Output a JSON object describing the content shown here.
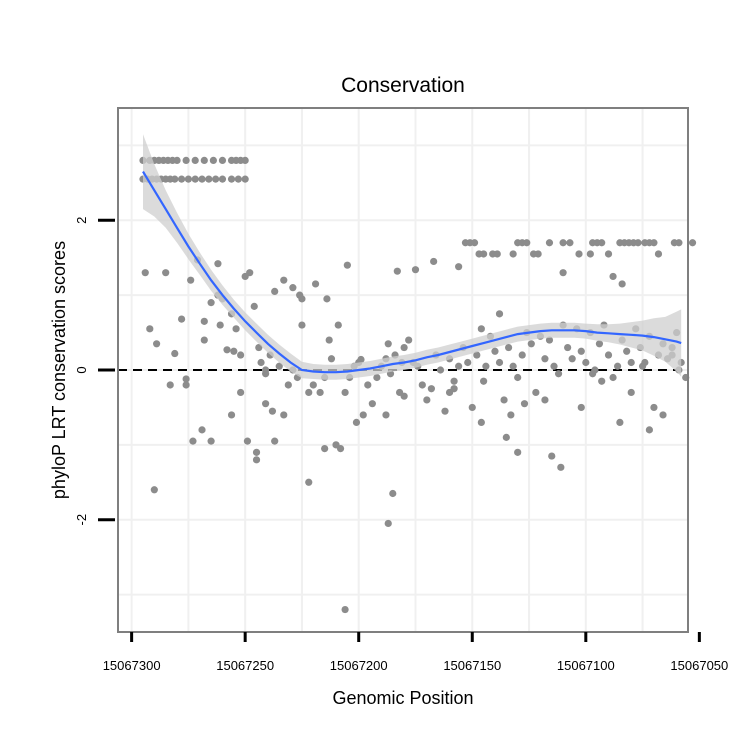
{
  "chart_data": {
    "type": "scatter",
    "title": "Conservation",
    "xlabel": "Genomic Position",
    "ylabel": "phyloP LRT conservation scores",
    "x_reversed": true,
    "xlim": [
      15067055,
      15067306
    ],
    "ylim": [
      -3.5,
      3.5
    ],
    "x_ticks": [
      15067300,
      15067250,
      15067200,
      15067150,
      15067100,
      15067050
    ],
    "x_tick_labels": [
      "15067300",
      "15067250",
      "15067200",
      "15067150",
      "15067100",
      "15067050"
    ],
    "y_ticks": [
      -2,
      0,
      2
    ],
    "y_tick_labels": [
      "-2",
      "0",
      "2"
    ],
    "reference_line": {
      "y": 0,
      "style": "dashed"
    },
    "grid": true,
    "colors": {
      "points": "#8c8c8c",
      "smooth": "#3366ff",
      "ribbon": "#cfcfcf",
      "border": "#7f7f7f",
      "grid": "#f0f0f0"
    },
    "points_x": [
      15067295,
      15067292,
      15067290,
      15067288,
      15067286,
      15067284,
      15067282,
      15067280,
      15067276,
      15067272,
      15067268,
      15067264,
      15067260,
      15067256,
      15067254,
      15067252,
      15067250,
      15067295,
      15067293,
      15067291,
      15067289,
      15067287,
      15067285,
      15067283,
      15067281,
      15067278,
      15067275,
      15067272,
      15067269,
      15067266,
      15067263,
      15067260,
      15067256,
      15067253,
      15067250,
      15067130,
      15067128,
      15067126,
      15067116,
      15067110,
      15067107,
      15067097,
      15067095,
      15067093,
      15067085,
      15067083,
      15067081,
      15067079,
      15067077,
      15067074,
      15067072,
      15067070,
      15067061,
      15067059,
      15067053,
      15067153,
      15067151,
      15067149,
      15067147,
      15067145,
      15067141,
      15067139,
      15067132,
      15067123,
      15067121,
      15067103,
      15067068,
      15067098,
      15067090,
      15067294,
      15067292,
      15067290,
      15067285,
      15067281,
      15067278,
      15067276,
      15067274,
      15067271,
      15067268,
      15067265,
      15067262,
      15067258,
      15067256,
      15067254,
      15067252,
      15067250,
      15067248,
      15067246,
      15067244,
      15067241,
      15067239,
      15067237,
      15067235,
      15067233,
      15067231,
      15067229,
      15067227,
      15067225,
      15067222,
      15067220,
      15067217,
      15067214,
      15067212,
      15067210,
      15067208,
      15067206,
      15067204,
      15067202,
      15067200,
      15067198,
      15067196,
      15067194,
      15067192,
      15067190,
      15067188,
      15067186,
      15067184,
      15067182,
      15067180,
      15067178,
      15067176,
      15067174,
      15067172,
      15067170,
      15067168,
      15067166,
      15067164,
      15067162,
      15067160,
      15067158,
      15067156,
      15067154,
      15067152,
      15067150,
      15067148,
      15067146,
      15067144,
      15067142,
      15067140,
      15067138,
      15067136,
      15067134,
      15067132,
      15067130,
      15067128,
      15067126,
      15067124,
      15067122,
      15067120,
      15067118,
      15067116,
      15067114,
      15067112,
      15067110,
      15067108,
      15067106,
      15067104,
      15067102,
      15067100,
      15067098,
      15067096,
      15067094,
      15067092,
      15067090,
      15067088,
      15067086,
      15067084,
      15067082,
      15067080,
      15067078,
      15067076,
      15067074,
      15067072,
      15067070,
      15067068,
      15067066,
      15067064,
      15067062,
      15067060,
      15067058,
      15067056,
      15067059,
      15067062,
      15067066,
      15067080,
      15067084,
      15067088,
      15067110,
      15067115,
      15067130,
      15067135,
      15067138,
      15067146,
      15067156,
      15067160,
      15067167,
      15067175,
      15067181,
      15067183,
      15067187,
      15067199,
      15067205,
      15067209,
      15067213,
      15067219,
      15067226,
      15067229,
      15067233,
      15067237,
      15067241,
      15067245,
      15067249,
      15067252,
      15067256,
      15067261,
      15067265,
      15067268,
      15067273,
      15067289,
      15067283,
      15067260,
      15067243,
      15067238,
      15067222,
      15067215,
      15067201,
      15067187,
      15067180,
      15067158,
      15067145,
      15067097,
      15067093,
      15067072,
      15067085,
      15067075,
      15067241,
      15067255,
      15067269,
      15067262,
      15067245,
      15067188,
      15067133,
      15067127,
      15067118,
      15067111,
      15067102,
      15067215,
      15067276,
      15067225,
      15067185,
      15067206
    ],
    "points_y": [
      2.8,
      2.8,
      2.8,
      2.8,
      2.8,
      2.8,
      2.8,
      2.8,
      2.8,
      2.8,
      2.8,
      2.8,
      2.8,
      2.8,
      2.8,
      2.8,
      2.8,
      2.55,
      2.55,
      2.55,
      2.55,
      2.55,
      2.55,
      2.55,
      2.55,
      2.55,
      2.55,
      2.55,
      2.55,
      2.55,
      2.55,
      2.55,
      2.55,
      2.55,
      2.55,
      1.7,
      1.7,
      1.7,
      1.7,
      1.7,
      1.7,
      1.7,
      1.7,
      1.7,
      1.7,
      1.7,
      1.7,
      1.7,
      1.7,
      1.7,
      1.7,
      1.7,
      1.7,
      1.7,
      1.7,
      1.7,
      1.7,
      1.7,
      1.55,
      1.55,
      1.55,
      1.55,
      1.55,
      1.55,
      1.55,
      1.55,
      1.55,
      1.55,
      1.55,
      1.3,
      0.55,
      -1.6,
      1.3,
      0.22,
      0.68,
      -0.12,
      1.2,
      1.47,
      0.65,
      -0.95,
      1.42,
      0.27,
      0.75,
      0.55,
      0.2,
      1.25,
      1.3,
      0.85,
      0.3,
      -0.05,
      0.2,
      -0.95,
      0.05,
      -0.6,
      -0.2,
      0.0,
      -0.1,
      0.95,
      -1.5,
      -0.2,
      -0.3,
      0.95,
      0.15,
      -1.0,
      -1.05,
      -0.3,
      -0.1,
      0.05,
      0.1,
      -0.6,
      -0.2,
      -0.45,
      -0.1,
      0.05,
      0.15,
      -0.05,
      0.2,
      -0.3,
      0.3,
      0.4,
      0.1,
      0.05,
      -0.2,
      -0.4,
      -0.25,
      0.2,
      0.0,
      -0.55,
      0.15,
      -0.15,
      0.05,
      0.3,
      0.1,
      -0.5,
      0.2,
      -0.7,
      0.05,
      0.45,
      0.25,
      0.1,
      -0.4,
      0.3,
      0.05,
      -0.1,
      0.2,
      0.5,
      0.35,
      -0.3,
      0.45,
      0.15,
      0.4,
      0.05,
      -0.05,
      0.6,
      0.3,
      0.15,
      0.55,
      0.25,
      0.1,
      0.5,
      0.0,
      0.35,
      0.6,
      0.2,
      -0.1,
      0.05,
      0.4,
      0.25,
      -0.3,
      0.55,
      0.3,
      0.1,
      0.45,
      -0.5,
      0.2,
      -0.6,
      0.15,
      0.3,
      0.5,
      0.1,
      -0.1,
      0.0,
      0.2,
      0.35,
      0.1,
      1.15,
      1.25,
      1.3,
      -1.15,
      -1.1,
      -0.9,
      0.75,
      0.55,
      1.38,
      -0.3,
      1.45,
      1.34,
      0.1,
      1.32,
      0.35,
      0.14,
      1.4,
      0.6,
      0.4,
      1.15,
      1.0,
      1.1,
      1.2,
      1.05,
      0.0,
      -1.1,
      -0.95,
      -0.3,
      -0.6,
      0.6,
      0.9,
      0.4,
      -0.95,
      0.35,
      -0.2,
      0.95,
      0.1,
      -0.55,
      -0.3,
      -0.1,
      -0.7,
      -2.05,
      -0.35,
      -0.25,
      -0.15,
      -0.05,
      -0.15,
      -0.8,
      -0.7,
      0.05,
      -0.45,
      0.25,
      -0.8,
      1.0,
      -1.2,
      -0.6,
      -0.6,
      -0.45,
      -0.4,
      -1.3,
      -0.5,
      -1.05,
      -0.2,
      0.6,
      -1.65,
      -3.2,
      0.55
    ],
    "smooth_x": [
      15067295,
      15067290,
      15067285,
      15067280,
      15067275,
      15067270,
      15067265,
      15067260,
      15067255,
      15067250,
      15067245,
      15067240,
      15067235,
      15067230,
      15067225,
      15067220,
      15067215,
      15067210,
      15067205,
      15067200,
      15067195,
      15067190,
      15067185,
      15067180,
      15067175,
      15067170,
      15067165,
      15067160,
      15067155,
      15067150,
      15067145,
      15067140,
      15067135,
      15067130,
      15067125,
      15067120,
      15067115,
      15067110,
      15067105,
      15067100,
      15067095,
      15067090,
      15067085,
      15067080,
      15067075,
      15067070,
      15067065,
      15067060,
      15067058
    ],
    "smooth_y": [
      2.65,
      2.4,
      2.15,
      1.9,
      1.65,
      1.42,
      1.2,
      1.0,
      0.82,
      0.65,
      0.5,
      0.35,
      0.22,
      0.1,
      0.0,
      -0.02,
      -0.03,
      -0.03,
      -0.02,
      0.0,
      0.02,
      0.05,
      0.08,
      0.1,
      0.13,
      0.17,
      0.2,
      0.24,
      0.28,
      0.32,
      0.36,
      0.4,
      0.44,
      0.48,
      0.5,
      0.52,
      0.53,
      0.53,
      0.53,
      0.52,
      0.5,
      0.49,
      0.48,
      0.47,
      0.46,
      0.44,
      0.41,
      0.38,
      0.36
    ],
    "smooth_band": [
      0.5,
      0.35,
      0.25,
      0.2,
      0.17,
      0.15,
      0.14,
      0.13,
      0.12,
      0.12,
      0.12,
      0.12,
      0.12,
      0.12,
      0.11,
      0.1,
      0.1,
      0.1,
      0.1,
      0.1,
      0.1,
      0.1,
      0.1,
      0.1,
      0.1,
      0.1,
      0.1,
      0.1,
      0.1,
      0.1,
      0.1,
      0.1,
      0.1,
      0.1,
      0.1,
      0.1,
      0.1,
      0.1,
      0.1,
      0.1,
      0.11,
      0.12,
      0.14,
      0.17,
      0.2,
      0.25,
      0.3,
      0.4,
      0.45
    ]
  }
}
